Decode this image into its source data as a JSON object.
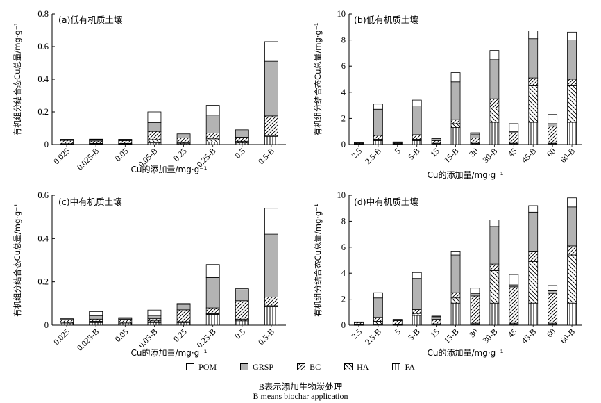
{
  "colors": {
    "POM": "#ffffff",
    "GRSP": "#b3b3b3",
    "BC": "#ffffff",
    "HA": "#ffffff",
    "FA": "#ffffff",
    "ink": "#000000"
  },
  "legend": [
    "POM",
    "GRSP",
    "BC",
    "HA",
    "FA"
  ],
  "note_cn": "B表示添加生物炭处理",
  "note_en": "B means biochar application",
  "chart_data": [
    {
      "type": "bar",
      "stacked": true,
      "title": "(a)低有机质土壤",
      "xlabel": "Cu的添加量/mg·g⁻¹",
      "ylabel": "有机组分结合态Cu总量/mg·g⁻¹",
      "ylim": [
        0,
        0.8
      ],
      "yticks": [
        "0",
        "0.2",
        "0.4",
        "0.6",
        "0.8"
      ],
      "categories": [
        "0.025",
        "0.025-B",
        "0.05",
        "0.05-B",
        "0.25",
        "0.25-B",
        "0.5",
        "0.5-B"
      ],
      "series": [
        {
          "name": "FA",
          "values": [
            0.003,
            0.003,
            0.003,
            0.01,
            0.005,
            0.015,
            0.01,
            0.05
          ]
        },
        {
          "name": "HA",
          "values": [
            0.002,
            0.004,
            0.004,
            0.02,
            0.005,
            0.02,
            0.01,
            0.005
          ]
        },
        {
          "name": "BC",
          "values": [
            0.02,
            0.015,
            0.017,
            0.05,
            0.03,
            0.035,
            0.025,
            0.12
          ]
        },
        {
          "name": "GRSP",
          "values": [
            0.005,
            0.008,
            0.006,
            0.055,
            0.025,
            0.11,
            0.045,
            0.335
          ]
        },
        {
          "name": "POM",
          "values": [
            0.002,
            0.003,
            0.002,
            0.065,
            0.0,
            0.06,
            0.0,
            0.12
          ]
        }
      ]
    },
    {
      "type": "bar",
      "stacked": true,
      "title": "(b)低有机质土壤",
      "xlabel": "Cu的添加量/mg·g⁻¹",
      "ylabel": "有机组分结合态Cu总量/mg·g⁻¹",
      "ylim": [
        0,
        10
      ],
      "yticks": [
        "0",
        "2",
        "4",
        "6",
        "8",
        "10"
      ],
      "categories": [
        "2.5",
        "2.5-B",
        "5",
        "5-B",
        "15",
        "15-B",
        "30",
        "30-B",
        "45",
        "45-B",
        "60",
        "60-B"
      ],
      "series": [
        {
          "name": "FA",
          "values": [
            0.02,
            0.3,
            0.02,
            0.3,
            0.05,
            1.3,
            0.05,
            1.7,
            0.05,
            1.7,
            0.05,
            1.7
          ]
        },
        {
          "name": "HA",
          "values": [
            0.03,
            0.1,
            0.03,
            0.1,
            0.05,
            0.3,
            0.05,
            1.1,
            0.05,
            2.8,
            0.05,
            2.8
          ]
        },
        {
          "name": "BC",
          "values": [
            0.05,
            0.3,
            0.05,
            0.35,
            0.2,
            0.3,
            0.4,
            0.7,
            0.8,
            0.6,
            1.3,
            0.5
          ]
        },
        {
          "name": "GRSP",
          "values": [
            0.05,
            2.0,
            0.05,
            2.2,
            0.15,
            2.9,
            0.3,
            3.0,
            0.1,
            3.0,
            0.2,
            3.0
          ]
        },
        {
          "name": "POM",
          "values": [
            0.0,
            0.4,
            0.05,
            0.45,
            0.05,
            0.7,
            0.1,
            0.7,
            0.6,
            0.6,
            0.7,
            0.6
          ]
        }
      ]
    },
    {
      "type": "bar",
      "stacked": true,
      "title": "(c)中有机质土壤",
      "xlabel": "Cu的添加量/mg·g⁻¹",
      "ylabel": "有机组分结合态Cu总量/mg·g⁻¹",
      "ylim": [
        0,
        0.6
      ],
      "yticks": [
        "0",
        "0.2",
        "0.4",
        "0.6"
      ],
      "categories": [
        "0.025",
        "0.025-B",
        "0.05",
        "0.05-B",
        "0.25",
        "0.25-B",
        "0.5",
        "0.5-B"
      ],
      "series": [
        {
          "name": "FA",
          "values": [
            0.01,
            0.012,
            0.01,
            0.012,
            0.012,
            0.05,
            0.02,
            0.085
          ]
        },
        {
          "name": "HA",
          "values": [
            0.004,
            0.006,
            0.004,
            0.008,
            0.004,
            0.003,
            0.008,
            0.005
          ]
        },
        {
          "name": "BC",
          "values": [
            0.012,
            0.01,
            0.013,
            0.01,
            0.055,
            0.027,
            0.085,
            0.04
          ]
        },
        {
          "name": "GRSP",
          "values": [
            0.004,
            0.015,
            0.005,
            0.015,
            0.025,
            0.14,
            0.05,
            0.29
          ]
        },
        {
          "name": "POM",
          "values": [
            0.0,
            0.02,
            0.003,
            0.025,
            0.004,
            0.06,
            0.005,
            0.12
          ]
        }
      ]
    },
    {
      "type": "bar",
      "stacked": true,
      "title": "(d)中有机质土壤",
      "xlabel": "Cu的添加量/mg·g⁻¹",
      "ylabel": "有机组分结合态Cu总量/mg·g⁻¹",
      "ylim": [
        0,
        10
      ],
      "yticks": [
        "0",
        "2",
        "4",
        "6",
        "8",
        "10"
      ],
      "categories": [
        "2.5",
        "2.5-B",
        "5",
        "5-B",
        "15",
        "15-B",
        "30",
        "30-B",
        "45",
        "45-B",
        "60",
        "60-B"
      ],
      "series": [
        {
          "name": "FA",
          "values": [
            0.02,
            0.05,
            0.02,
            0.75,
            0.05,
            1.7,
            0.05,
            1.7,
            0.05,
            1.7,
            0.05,
            1.7
          ]
        },
        {
          "name": "HA",
          "values": [
            0.03,
            0.25,
            0.03,
            0.15,
            0.05,
            0.4,
            0.1,
            2.5,
            0.1,
            3.2,
            0.1,
            3.7
          ]
        },
        {
          "name": "BC",
          "values": [
            0.15,
            0.3,
            0.3,
            0.3,
            0.35,
            0.4,
            2.1,
            0.5,
            2.8,
            0.8,
            2.3,
            0.7
          ]
        },
        {
          "name": "GRSP",
          "values": [
            0.05,
            1.5,
            0.1,
            2.4,
            0.2,
            2.9,
            0.2,
            2.9,
            0.15,
            3.0,
            0.2,
            3.0
          ]
        },
        {
          "name": "POM",
          "values": [
            0.0,
            0.4,
            0.0,
            0.45,
            0.05,
            0.3,
            0.4,
            0.5,
            0.8,
            0.5,
            0.4,
            0.7
          ]
        }
      ]
    }
  ]
}
